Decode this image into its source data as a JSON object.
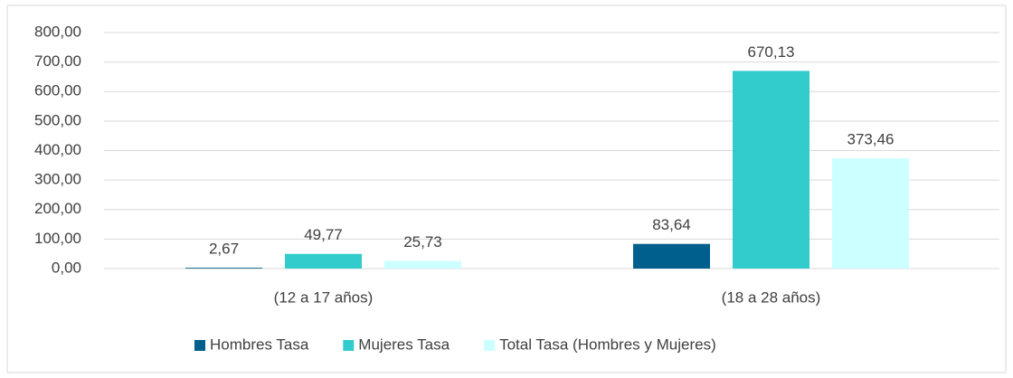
{
  "chart_data": {
    "type": "bar",
    "categories": [
      "(12 a 17 años)",
      "(18 a 28 años)"
    ],
    "series": [
      {
        "name": "Hombres Tasa",
        "color": "#005f8c",
        "values": [
          2.67,
          83.64
        ],
        "value_labels": [
          "2,67",
          "83,64"
        ]
      },
      {
        "name": "Mujeres Tasa",
        "color": "#33cccc",
        "values": [
          49.77,
          670.13
        ],
        "value_labels": [
          "49,77",
          "670,13"
        ]
      },
      {
        "name": "Total Tasa (Hombres y Mujeres)",
        "color": "#ccffff",
        "values": [
          25.73,
          373.46
        ],
        "value_labels": [
          "25,73",
          "373,46"
        ]
      }
    ],
    "ylim": [
      0,
      800
    ],
    "yticks": [
      {
        "value": 0,
        "label": "0,00"
      },
      {
        "value": 100,
        "label": "100,00"
      },
      {
        "value": 200,
        "label": "200,00"
      },
      {
        "value": 300,
        "label": "300,00"
      },
      {
        "value": 400,
        "label": "400,00"
      },
      {
        "value": 500,
        "label": "500,00"
      },
      {
        "value": 600,
        "label": "600,00"
      },
      {
        "value": 700,
        "label": "700,00"
      },
      {
        "value": 800,
        "label": "800,00"
      }
    ],
    "grid": true,
    "legend": "bottom"
  }
}
